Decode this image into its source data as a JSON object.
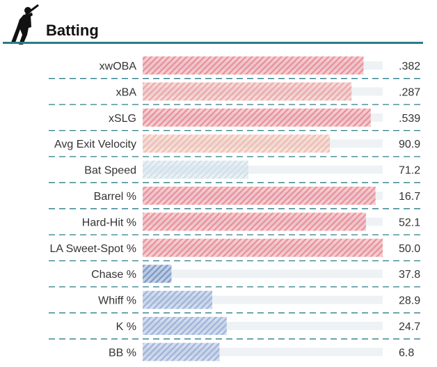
{
  "section": {
    "title": "Batting",
    "icon": "batter-icon"
  },
  "colors": {
    "accent": "#2b7c86",
    "track": "#eef2f5"
  },
  "chart_data": {
    "type": "bar",
    "orientation": "horizontal",
    "percentile_max": 100,
    "categories": [
      "xwOBA",
      "xBA",
      "xSLG",
      "Avg Exit Velocity",
      "Bat Speed",
      "Barrel %",
      "Hard-Hit %",
      "LA Sweet-Spot %",
      "Chase %",
      "Whiff %",
      "K %",
      "BB %"
    ],
    "value_labels": [
      ".382",
      ".287",
      ".539",
      "90.9",
      "71.2",
      "16.7",
      "52.1",
      "50.0",
      "37.8",
      "28.9",
      "24.7",
      "6.8"
    ],
    "percentiles": [
      92,
      87,
      95,
      78,
      44,
      97,
      93,
      100,
      12,
      29,
      35,
      32
    ],
    "bar_colors": [
      "#e98f98",
      "#eca7a7",
      "#e98f98",
      "#f0bcb0",
      "#d0e0ea",
      "#e98f98",
      "#e98f98",
      "#e98f98",
      "#7b98c6",
      "#9eb2d9",
      "#9eb2d9",
      "#9eb2d9"
    ],
    "grid": false,
    "legend": "none"
  }
}
